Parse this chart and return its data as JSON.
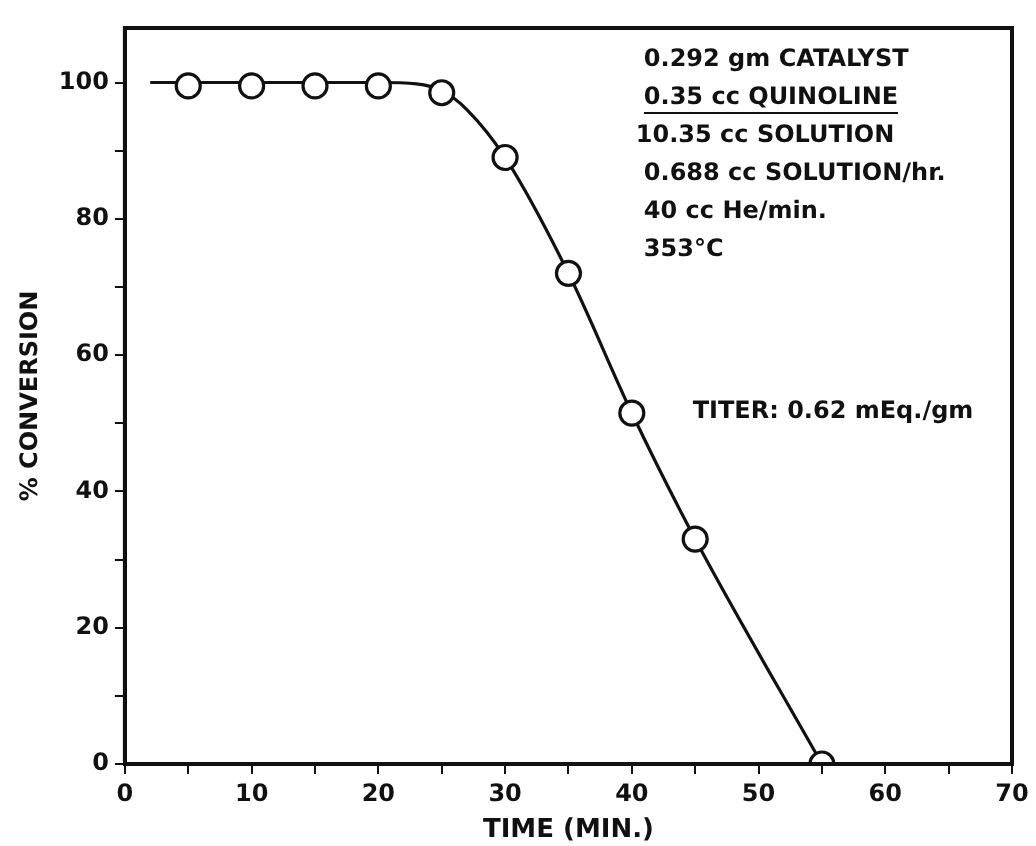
{
  "chart_data": {
    "type": "scatter",
    "xlabel": "TIME (MIN.)",
    "ylabel": "% CONVERSION",
    "xlim": [
      0,
      70
    ],
    "ylim": [
      0,
      108
    ],
    "xticks": [
      0,
      {
        "value": 5,
        "label": null
      },
      10,
      {
        "value": 15,
        "label": null
      },
      20,
      {
        "value": 25,
        "label": null
      },
      30,
      {
        "value": 35,
        "label": null
      },
      40,
      {
        "value": 45,
        "label": null
      },
      50,
      {
        "value": 55,
        "label": null
      },
      60,
      {
        "value": 65,
        "label": null
      },
      70
    ],
    "yticks": [
      0,
      {
        "value": 10,
        "label": null
      },
      20,
      {
        "value": 30,
        "label": null
      },
      40,
      {
        "value": 50,
        "label": null
      },
      60,
      {
        "value": 70,
        "label": null
      },
      80,
      {
        "value": 90,
        "label": null
      },
      100
    ],
    "marker": "circle",
    "grid": false,
    "legend": false,
    "series": [
      {
        "color": "#111111",
        "x": [
          5,
          10,
          15,
          20,
          25,
          30,
          35,
          40,
          45,
          55
        ],
        "values": [
          99.5,
          99.5,
          99.5,
          99.5,
          98.5,
          89,
          72,
          51.5,
          33,
          0
        ]
      },
      {
        "type": "line",
        "color": "#111111",
        "marker": "none",
        "x": [
          2,
          20,
          23,
          25,
          27,
          30,
          35,
          40,
          45,
          55
        ],
        "values": [
          100,
          100,
          99.8,
          98.8,
          96,
          89,
          72,
          51.5,
          33,
          0
        ]
      }
    ],
    "annotations": [
      "0.292 gm CATALYST",
      "0.35 cc QUINOLINE",
      "10.35 cc SOLUTION",
      "0.688 cc SOLUTION/hr.",
      "40 cc He/min.",
      "353°C",
      "TITER: 0.62 mEq./gm"
    ]
  }
}
